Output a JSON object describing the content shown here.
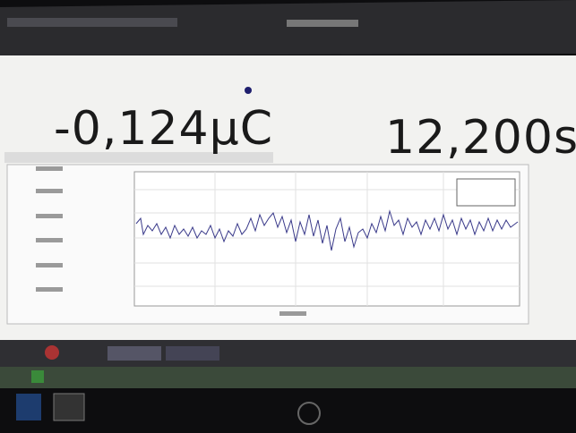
{
  "readouts": {
    "charge": "-0,124µC",
    "time": "12,200s"
  }
}
